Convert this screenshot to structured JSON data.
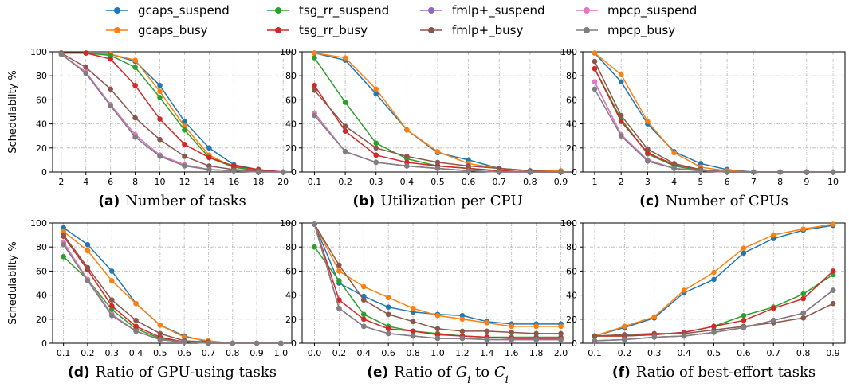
{
  "legend": [
    {
      "name": "gcaps_suspend",
      "color": "#1f77b4"
    },
    {
      "name": "gcaps_busy",
      "color": "#ff7f0e"
    },
    {
      "name": "tsg_rr_suspend",
      "color": "#2ca02c"
    },
    {
      "name": "tsg_rr_busy",
      "color": "#d62728"
    },
    {
      "name": "fmlp+_suspend",
      "color": "#9467bd"
    },
    {
      "name": "fmlp+_busy",
      "color": "#8c564b"
    },
    {
      "name": "mpcp_suspend",
      "color": "#e377c2"
    },
    {
      "name": "mpcp_busy",
      "color": "#7f7f7f"
    }
  ],
  "chart_data": [
    {
      "type": "line",
      "caption_tag": "(a)",
      "caption_text": "Number of tasks",
      "ylabel": "Schedulabilty %",
      "ylim": [
        0,
        100
      ],
      "yticks": [
        0,
        20,
        40,
        60,
        80,
        100
      ],
      "xlim": [
        1.3,
        20.7
      ],
      "xticks": [
        2,
        4,
        6,
        8,
        10,
        12,
        14,
        16,
        18,
        20
      ],
      "xtick_labels": [
        "2",
        "4",
        "6",
        "8",
        "10",
        "12",
        "14",
        "16",
        "18",
        "20"
      ],
      "grid": true,
      "x": [
        2,
        4,
        6,
        8,
        10,
        12,
        14,
        16,
        18,
        20
      ],
      "series": [
        {
          "name": "gcaps_suspend",
          "values": [
            99,
            99,
            98,
            92,
            72,
            42,
            20,
            6,
            2,
            0
          ]
        },
        {
          "name": "gcaps_busy",
          "values": [
            99,
            99,
            98,
            93,
            67,
            38,
            14,
            4,
            1,
            0
          ]
        },
        {
          "name": "tsg_rr_suspend",
          "values": [
            99,
            99,
            97,
            87,
            62,
            35,
            12,
            4,
            1,
            0
          ]
        },
        {
          "name": "tsg_rr_busy",
          "values": [
            99,
            99,
            94,
            72,
            44,
            23,
            12,
            5,
            2,
            0
          ]
        },
        {
          "name": "fmlp+_suspend",
          "values": [
            98,
            83,
            56,
            31,
            14,
            6,
            2,
            1,
            0,
            0
          ]
        },
        {
          "name": "fmlp+_busy",
          "values": [
            99,
            87,
            69,
            45,
            27,
            13,
            5,
            2,
            1,
            0
          ]
        },
        {
          "name": "mpcp_suspend",
          "values": [
            98,
            83,
            56,
            31,
            14,
            6,
            2,
            1,
            0,
            0
          ]
        },
        {
          "name": "mpcp_busy",
          "values": [
            98,
            82,
            55,
            29,
            13,
            5,
            2,
            1,
            0,
            0
          ]
        }
      ]
    },
    {
      "type": "line",
      "caption_tag": "(b)",
      "caption_text": "Utilization per CPU",
      "ylabel": "",
      "ylim": [
        0,
        100
      ],
      "yticks": [
        0,
        20,
        40,
        60,
        80,
        100
      ],
      "xlim": [
        0.06,
        0.94
      ],
      "xticks": [
        0.1,
        0.2,
        0.3,
        0.4,
        0.5,
        0.6,
        0.7,
        0.8,
        0.9
      ],
      "xtick_labels": [
        "0.1",
        "0.2",
        "0.3",
        "0.4",
        "0.5",
        "0.6",
        "0.7",
        "0.8",
        "0.9"
      ],
      "grid": true,
      "x": [
        0.1,
        0.2,
        0.3,
        0.4,
        0.5,
        0.6,
        0.7,
        0.8,
        0.9
      ],
      "series": [
        {
          "name": "gcaps_suspend",
          "values": [
            99,
            93,
            65,
            35,
            16,
            10,
            3,
            1,
            1
          ]
        },
        {
          "name": "gcaps_busy",
          "values": [
            99,
            95,
            69,
            35,
            17,
            7,
            3,
            1,
            1
          ]
        },
        {
          "name": "tsg_rr_suspend",
          "values": [
            95,
            58,
            24,
            11,
            5,
            3,
            1,
            0,
            0
          ]
        },
        {
          "name": "tsg_rr_busy",
          "values": [
            72,
            34,
            14,
            8,
            5,
            3,
            1,
            0,
            0
          ]
        },
        {
          "name": "fmlp+_suspend",
          "values": [
            49,
            17,
            8,
            5,
            3,
            1,
            0,
            0,
            0
          ]
        },
        {
          "name": "fmlp+_busy",
          "values": [
            68,
            38,
            20,
            13,
            8,
            5,
            3,
            1,
            0
          ]
        },
        {
          "name": "mpcp_suspend",
          "values": [
            49,
            17,
            8,
            5,
            3,
            1,
            0,
            0,
            0
          ]
        },
        {
          "name": "mpcp_busy",
          "values": [
            47,
            17,
            8,
            5,
            3,
            1,
            0,
            0,
            0
          ]
        }
      ]
    },
    {
      "type": "line",
      "caption_tag": "(c)",
      "caption_text": "Number of CPUs",
      "ylabel": "",
      "ylim": [
        0,
        100
      ],
      "yticks": [
        0,
        20,
        40,
        60,
        80,
        100
      ],
      "xlim": [
        0.55,
        10.45
      ],
      "xticks": [
        1,
        2,
        3,
        4,
        5,
        6,
        7,
        8,
        9,
        10
      ],
      "xtick_labels": [
        "1",
        "2",
        "3",
        "4",
        "5",
        "6",
        "7",
        "8",
        "9",
        "10"
      ],
      "grid": true,
      "x": [
        1,
        2,
        3,
        4,
        5,
        6,
        7,
        8,
        9,
        10
      ],
      "series": [
        {
          "name": "gcaps_suspend",
          "values": [
            99,
            75,
            40,
            17,
            7,
            2,
            0,
            0,
            0,
            0
          ]
        },
        {
          "name": "gcaps_busy",
          "values": [
            99,
            81,
            42,
            16,
            4,
            1,
            0,
            0,
            0,
            0
          ]
        },
        {
          "name": "tsg_rr_suspend",
          "values": [
            86,
            44,
            15,
            5,
            1,
            0,
            0,
            0,
            0,
            0
          ]
        },
        {
          "name": "tsg_rr_busy",
          "values": [
            86,
            42,
            16,
            6,
            2,
            0,
            0,
            0,
            0,
            0
          ]
        },
        {
          "name": "fmlp+_suspend",
          "values": [
            75,
            31,
            10,
            3,
            1,
            0,
            0,
            0,
            0,
            0
          ]
        },
        {
          "name": "fmlp+_busy",
          "values": [
            92,
            47,
            19,
            7,
            2,
            0,
            0,
            0,
            0,
            0
          ]
        },
        {
          "name": "mpcp_suspend",
          "values": [
            75,
            31,
            10,
            3,
            1,
            0,
            0,
            0,
            0,
            0
          ]
        },
        {
          "name": "mpcp_busy",
          "values": [
            69,
            30,
            9,
            3,
            1,
            0,
            0,
            0,
            0,
            0
          ]
        }
      ]
    },
    {
      "type": "line",
      "caption_tag": "(d)",
      "caption_text": "Ratio of GPU-using tasks",
      "ylabel": "Schedulabilty %",
      "ylim": [
        0,
        100
      ],
      "yticks": [
        0,
        20,
        40,
        60,
        80,
        100
      ],
      "xlim": [
        0.055,
        1.045
      ],
      "xticks": [
        0.1,
        0.2,
        0.3,
        0.4,
        0.5,
        0.6,
        0.7,
        0.8,
        0.9,
        1.0
      ],
      "xtick_labels": [
        "0.1",
        "0.2",
        "0.3",
        "0.4",
        "0.5",
        "0.6",
        "0.7",
        "0.8",
        "0.9",
        "1.0"
      ],
      "grid": true,
      "x": [
        0.1,
        0.2,
        0.3,
        0.4,
        0.5,
        0.6,
        0.7,
        0.8,
        0.9,
        1.0
      ],
      "series": [
        {
          "name": "gcaps_suspend",
          "values": [
            96,
            82,
            60,
            33,
            15,
            6,
            1,
            0,
            0,
            0
          ]
        },
        {
          "name": "gcaps_busy",
          "values": [
            93,
            77,
            52,
            33,
            15,
            5,
            2,
            0,
            0,
            0
          ]
        },
        {
          "name": "tsg_rr_suspend",
          "values": [
            72,
            53,
            28,
            12,
            4,
            1,
            0,
            0,
            0,
            0
          ]
        },
        {
          "name": "tsg_rr_busy",
          "values": [
            89,
            61,
            31,
            14,
            5,
            1,
            0,
            0,
            0,
            0
          ]
        },
        {
          "name": "fmlp+_suspend",
          "values": [
            83,
            53,
            24,
            10,
            3,
            1,
            0,
            0,
            0,
            0
          ]
        },
        {
          "name": "fmlp+_busy",
          "values": [
            90,
            63,
            36,
            19,
            8,
            2,
            1,
            0,
            0,
            0
          ]
        },
        {
          "name": "mpcp_suspend",
          "values": [
            84,
            53,
            24,
            10,
            3,
            1,
            0,
            0,
            0,
            0
          ]
        },
        {
          "name": "mpcp_busy",
          "values": [
            82,
            52,
            23,
            10,
            3,
            1,
            0,
            0,
            0,
            0
          ]
        }
      ]
    },
    {
      "type": "line",
      "caption_tag": "(e)",
      "caption_text": "Ratio of G_i to C_i",
      "ylabel": "",
      "ylim": [
        0,
        100
      ],
      "yticks": [
        0,
        20,
        40,
        60,
        80,
        100
      ],
      "xlim": [
        -0.1,
        2.1
      ],
      "xticks": [
        0.0,
        0.2,
        0.4,
        0.6,
        0.8,
        1.0,
        1.2,
        1.4,
        1.6,
        1.8,
        2.0
      ],
      "xtick_labels": [
        "0.0",
        "0.2",
        "0.4",
        "0.6",
        "0.8",
        "1.0",
        "1.2",
        "1.4",
        "1.6",
        "1.8",
        "2.0"
      ],
      "grid": true,
      "x": [
        0.0,
        0.2,
        0.4,
        0.6,
        0.8,
        1.0,
        1.2,
        1.4,
        1.6,
        1.8,
        2.0
      ],
      "series": [
        {
          "name": "gcaps_suspend",
          "values": [
            99,
            50,
            39,
            30,
            26,
            24,
            23,
            18,
            16,
            16,
            16
          ]
        },
        {
          "name": "gcaps_busy",
          "values": [
            99,
            60,
            47,
            38,
            29,
            23,
            20,
            17,
            14,
            14,
            14
          ]
        },
        {
          "name": "tsg_rr_suspend",
          "values": [
            80,
            52,
            24,
            14,
            10,
            8,
            6,
            5,
            5,
            5,
            5
          ]
        },
        {
          "name": "tsg_rr_busy",
          "values": [
            99,
            36,
            20,
            12,
            10,
            7,
            6,
            5,
            4,
            4,
            4
          ]
        },
        {
          "name": "fmlp+_suspend",
          "values": [
            99,
            29,
            14,
            8,
            6,
            4,
            4,
            3,
            3,
            3,
            3
          ]
        },
        {
          "name": "fmlp+_busy",
          "values": [
            99,
            65,
            36,
            24,
            18,
            12,
            10,
            10,
            9,
            8,
            8
          ]
        },
        {
          "name": "mpcp_suspend",
          "values": [
            99,
            29,
            14,
            8,
            6,
            4,
            4,
            3,
            3,
            3,
            3
          ]
        },
        {
          "name": "mpcp_busy",
          "values": [
            99,
            29,
            14,
            8,
            6,
            4,
            4,
            3,
            3,
            3,
            3
          ]
        }
      ]
    },
    {
      "type": "line",
      "caption_tag": "(f)",
      "caption_text": "Ratio of best-effort tasks",
      "ylabel": "",
      "ylim": [
        0,
        100
      ],
      "yticks": [
        0,
        20,
        40,
        60,
        80,
        100
      ],
      "xlim": [
        0.06,
        0.94
      ],
      "xticks": [
        0.1,
        0.2,
        0.3,
        0.4,
        0.5,
        0.6,
        0.7,
        0.8,
        0.9
      ],
      "xtick_labels": [
        "0.1",
        "0.2",
        "0.3",
        "0.4",
        "0.5",
        "0.6",
        "0.7",
        "0.8",
        "0.9"
      ],
      "grid": true,
      "x": [
        0.1,
        0.2,
        0.3,
        0.4,
        0.5,
        0.6,
        0.7,
        0.8,
        0.9
      ],
      "series": [
        {
          "name": "gcaps_suspend",
          "values": [
            6,
            13,
            21,
            42,
            53,
            75,
            87,
            94,
            98
          ]
        },
        {
          "name": "gcaps_busy",
          "values": [
            6,
            14,
            22,
            44,
            59,
            79,
            90,
            95,
            99
          ]
        },
        {
          "name": "tsg_rr_suspend",
          "values": [
            6,
            6,
            7,
            9,
            14,
            23,
            30,
            41,
            57
          ]
        },
        {
          "name": "tsg_rr_busy",
          "values": [
            6,
            6,
            7,
            9,
            14,
            19,
            29,
            37,
            60
          ]
        },
        {
          "name": "fmlp+_suspend",
          "values": [
            2,
            3,
            5,
            6,
            9,
            13,
            19,
            25,
            44
          ]
        },
        {
          "name": "fmlp+_busy",
          "values": [
            6,
            7,
            8,
            8,
            11,
            14,
            17,
            21,
            33
          ]
        },
        {
          "name": "mpcp_suspend",
          "values": [
            2,
            3,
            5,
            6,
            9,
            13,
            19,
            25,
            44
          ]
        },
        {
          "name": "mpcp_busy",
          "values": [
            2,
            3,
            5,
            6,
            9,
            13,
            19,
            25,
            44
          ]
        }
      ]
    }
  ]
}
